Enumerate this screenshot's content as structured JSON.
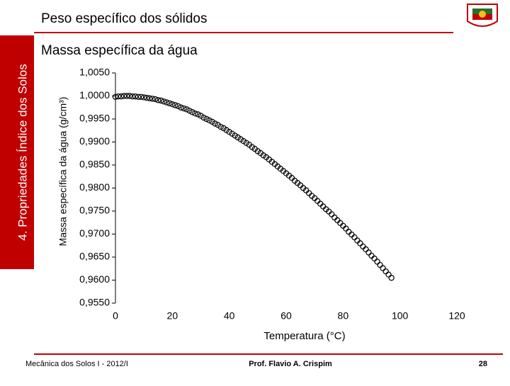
{
  "header": {
    "title": "Peso específico dos sólidos"
  },
  "side_label": "4. Propriedades Índice dos Solos",
  "subtitle": "Massa específica da água",
  "chart_data": {
    "type": "scatter",
    "ylabel": "Massa específica da água (g/cm³)",
    "xlabel": "Temperatura (°C)",
    "color": "#000000",
    "marker": "open-circle",
    "xlim": [
      0,
      120
    ],
    "xticks": [
      0,
      20,
      40,
      60,
      80,
      100,
      120
    ],
    "ylim": [
      0.955,
      1.005
    ],
    "yticks": [
      {
        "value": 1.005,
        "label": "1,0050"
      },
      {
        "value": 1.0,
        "label": "1,0000"
      },
      {
        "value": 0.995,
        "label": "0,9950"
      },
      {
        "value": 0.99,
        "label": "0,9900"
      },
      {
        "value": 0.985,
        "label": "0,9850"
      },
      {
        "value": 0.98,
        "label": "0,9800"
      },
      {
        "value": 0.975,
        "label": "0,9750"
      },
      {
        "value": 0.97,
        "label": "0,9700"
      },
      {
        "value": 0.965,
        "label": "0,9650"
      },
      {
        "value": 0.96,
        "label": "0,9600"
      },
      {
        "value": 0.955,
        "label": "0,9550"
      }
    ],
    "x": [
      0,
      1,
      2,
      3,
      4,
      5,
      6,
      7,
      8,
      9,
      10,
      11,
      12,
      13,
      14,
      15,
      16,
      17,
      18,
      19,
      20,
      21,
      22,
      23,
      24,
      25,
      26,
      27,
      28,
      29,
      30,
      31,
      32,
      33,
      34,
      35,
      36,
      37,
      38,
      39,
      40,
      41,
      42,
      43,
      44,
      45,
      46,
      47,
      48,
      49,
      50,
      51,
      52,
      53,
      54,
      55,
      56,
      57,
      58,
      59,
      60,
      61,
      62,
      63,
      64,
      65,
      66,
      67,
      68,
      69,
      70,
      71,
      72,
      73,
      74,
      75,
      76,
      77,
      78,
      79,
      80,
      81,
      82,
      83,
      84,
      85,
      86,
      87,
      88,
      89,
      90,
      91,
      92,
      93,
      94,
      95,
      96,
      97
    ],
    "values": [
      0.9998,
      0.9999,
      0.9999,
      1.0,
      1.0,
      1.0,
      0.9999,
      0.9999,
      0.9998,
      0.9998,
      0.9997,
      0.9996,
      0.9995,
      0.9994,
      0.9993,
      0.9991,
      0.999,
      0.9988,
      0.9986,
      0.9984,
      0.9982,
      0.998,
      0.9978,
      0.9975,
      0.9973,
      0.9971,
      0.9968,
      0.9965,
      0.9962,
      0.996,
      0.9957,
      0.9953,
      0.995,
      0.9947,
      0.9944,
      0.994,
      0.9937,
      0.9933,
      0.993,
      0.9926,
      0.9922,
      0.9918,
      0.9914,
      0.991,
      0.9906,
      0.9902,
      0.9898,
      0.9894,
      0.9889,
      0.9885,
      0.988,
      0.9876,
      0.9871,
      0.9867,
      0.9862,
      0.9857,
      0.9852,
      0.9847,
      0.9842,
      0.9837,
      0.9832,
      0.9827,
      0.9822,
      0.9816,
      0.9811,
      0.9806,
      0.98,
      0.9795,
      0.9789,
      0.9783,
      0.9778,
      0.9772,
      0.9766,
      0.976,
      0.9754,
      0.9749,
      0.9743,
      0.9736,
      0.973,
      0.9724,
      0.9718,
      0.9712,
      0.9705,
      0.9699,
      0.9693,
      0.9686,
      0.968,
      0.9673,
      0.9667,
      0.966,
      0.9653,
      0.9647,
      0.964,
      0.9633,
      0.9626,
      0.9619,
      0.9612,
      0.9605
    ]
  },
  "footer": {
    "left": "Mecânica dos Solos I - 2012/I",
    "center": "Prof. Flavio  A. Crispim",
    "page": "28"
  }
}
